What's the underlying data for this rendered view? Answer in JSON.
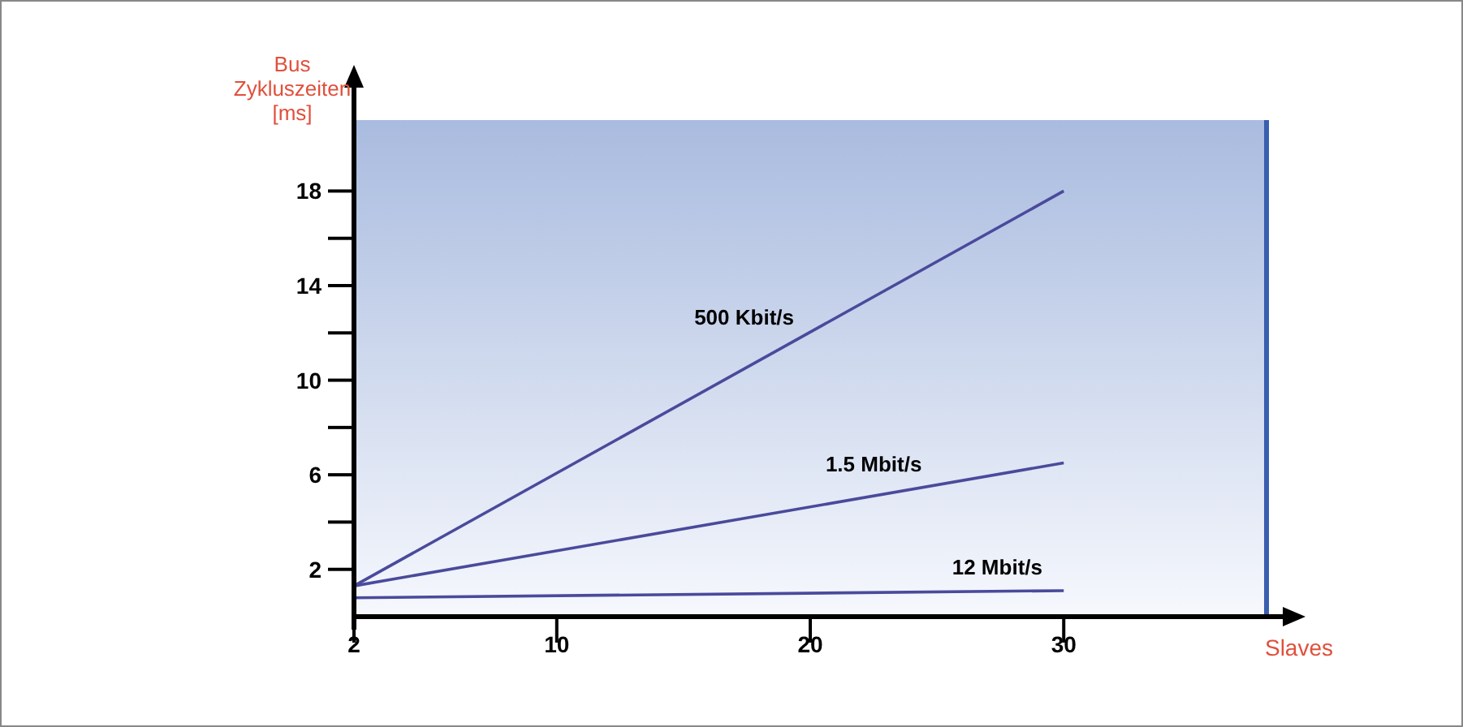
{
  "chart_data": {
    "type": "line",
    "ylabel": "Bus Zykluszeiten [ms]",
    "xlabel": "Slaves",
    "xlim": [
      2,
      38
    ],
    "xticks": [
      2,
      10,
      20,
      30
    ],
    "ylim": [
      0,
      21
    ],
    "yticks": [
      2,
      {
        "value": 4,
        "label": null
      },
      6,
      {
        "value": 8,
        "label": null
      },
      10,
      {
        "value": 12,
        "label": null
      },
      14,
      {
        "value": 16,
        "label": null
      },
      18
    ],
    "x": [
      2,
      30
    ],
    "grid": false,
    "marker": "none",
    "line_style": "solid",
    "series": [
      {
        "name": "500 Kbit/s",
        "color": "#4a4a9c",
        "values": [
          1.3,
          18
        ]
      },
      {
        "name": "1.5 Mbit/s",
        "color": "#4a4a9c",
        "values": [
          1.3,
          6.5
        ]
      },
      {
        "name": "12 Mbit/s",
        "color": "#4a4a9c",
        "values": [
          0.8,
          1.1
        ]
      }
    ]
  }
}
